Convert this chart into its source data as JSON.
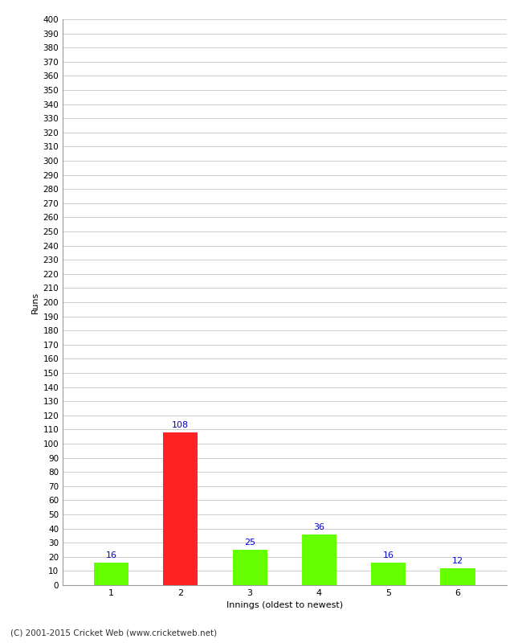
{
  "xlabel": "Innings (oldest to newest)",
  "ylabel": "Runs",
  "categories": [
    "1",
    "2",
    "3",
    "4",
    "5",
    "6"
  ],
  "values": [
    16,
    108,
    25,
    36,
    16,
    12
  ],
  "bar_colors": [
    "#66ff00",
    "#ff2222",
    "#66ff00",
    "#66ff00",
    "#66ff00",
    "#66ff00"
  ],
  "ylim": [
    0,
    400
  ],
  "ytick_step": 10,
  "label_color": "#0000cc",
  "background_color": "#ffffff",
  "grid_color": "#cccccc",
  "footer": "(C) 2001-2015 Cricket Web (www.cricketweb.net)"
}
